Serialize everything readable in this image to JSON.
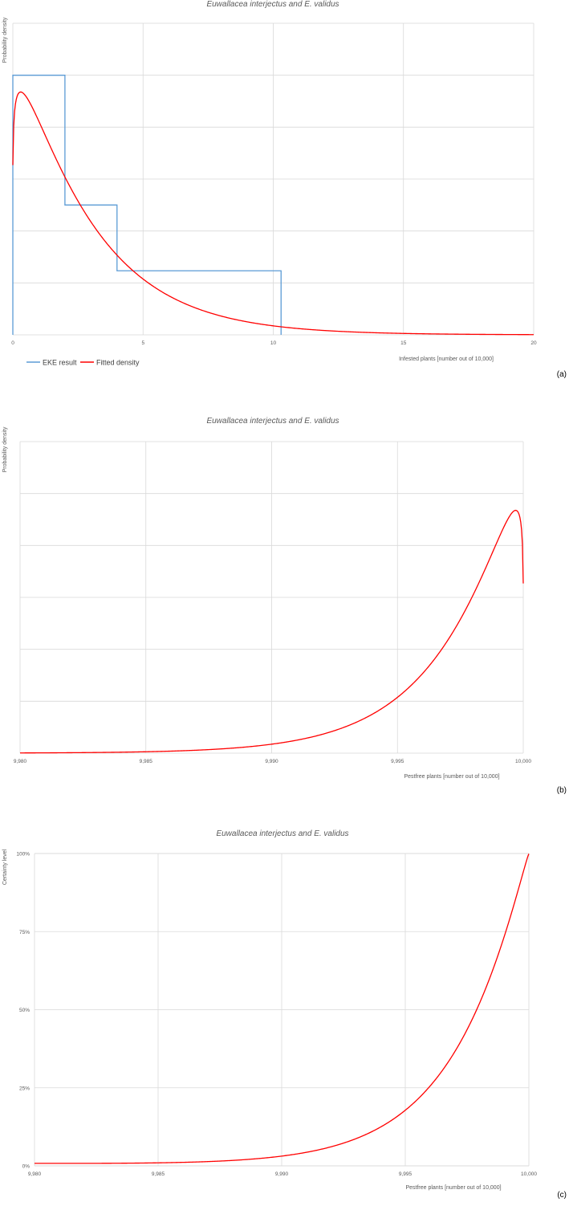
{
  "chart_data": [
    {
      "type": "line",
      "panel": "(a)",
      "title": "Euwallacea interjectus and E. validus",
      "xlabel": "Infested plants [number out of 10,000]",
      "ylabel": "Probability density",
      "xlim": [
        0,
        20
      ],
      "ylim": [
        0,
        0.36
      ],
      "x_ticks": [
        "0",
        "5",
        "10",
        "15",
        "20"
      ],
      "x_tick_values": [
        0,
        5,
        10,
        15,
        20
      ],
      "y_gridlines": [
        0.06,
        0.12,
        0.18,
        0.24,
        0.3
      ],
      "grid": true,
      "legend": {
        "position": "bottom-left",
        "entries": [
          "EKE result",
          "Fitted density"
        ]
      },
      "series": [
        {
          "name": "EKE result",
          "color": "#5b9bd5",
          "style": "step",
          "steps": [
            [
              0,
              2,
              0.3
            ],
            [
              2,
              4,
              0.15
            ],
            [
              4,
              10.3,
              0.074
            ]
          ]
        },
        {
          "name": "Fitted density",
          "color": "#ff0000",
          "style": "curve",
          "distribution": {
            "shape": 1.115,
            "scale": 2.62
          }
        }
      ]
    },
    {
      "type": "line",
      "panel": "(b)",
      "title": "Euwallacea interjectus and E. validus",
      "xlabel": "Pestfree plants [number out of 10,000]",
      "ylabel": "Probability density",
      "xlim": [
        9980,
        10000
      ],
      "ylim": [
        0,
        0.36
      ],
      "x_ticks": [
        "9,980",
        "9,985",
        "9,990",
        "9,995",
        "10,000"
      ],
      "x_tick_values": [
        9980,
        9985,
        9990,
        9995,
        10000
      ],
      "y_gridlines": [
        0.06,
        0.12,
        0.18,
        0.24,
        0.3
      ],
      "grid": true,
      "series": [
        {
          "color": "#ff0000",
          "style": "curve",
          "reflected_from": 10000,
          "distribution": {
            "shape": 1.115,
            "scale": 2.62
          }
        }
      ]
    },
    {
      "type": "line",
      "panel": "(c)",
      "title": "Euwallacea interjectus and E. validus",
      "xlabel": "Pestfree plants [number out of 10,000]",
      "ylabel": "Certainty level",
      "xlim": [
        9980,
        10000
      ],
      "ylim": [
        0,
        1
      ],
      "x_ticks": [
        "9,980",
        "9,985",
        "9,990",
        "9,995",
        "10,000"
      ],
      "x_tick_values": [
        9980,
        9985,
        9990,
        9995,
        10000
      ],
      "y_ticks": [
        "0%",
        "25%",
        "50%",
        "75%",
        "100%"
      ],
      "y_tick_values": [
        0,
        0.25,
        0.5,
        0.75,
        1
      ],
      "grid": true,
      "series": [
        {
          "color": "#ff0000",
          "style": "cdf",
          "reflected_from": 10000,
          "distribution": {
            "shape": 1.115,
            "scale": 2.62
          }
        }
      ]
    }
  ]
}
